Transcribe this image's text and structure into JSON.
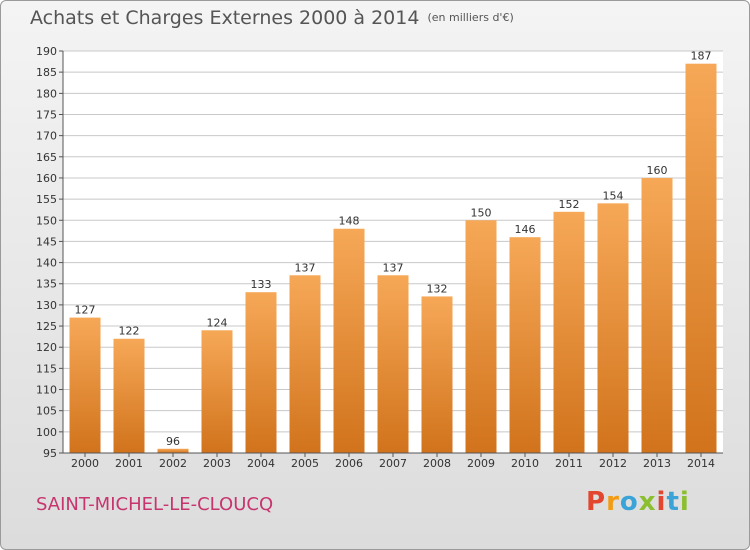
{
  "header": {
    "title": "Achats et Charges Externes 2000 à 2014",
    "unit": "(en milliers d'€)"
  },
  "footer": {
    "commune": "SAINT-MICHEL-LE-CLOUCQ",
    "logo_text": "Proxiti",
    "logo_colors": [
      "#e2462f",
      "#f39c12",
      "#3aa3d8",
      "#8bbf2f",
      "#e2462f",
      "#3aa3d8",
      "#8bbf2f"
    ]
  },
  "colors": {
    "bar_top": "#f6a857",
    "bar_bottom": "#d1731c",
    "grid": "#c8c8c8",
    "commune": "#c8346e"
  },
  "chart_data": {
    "type": "bar",
    "title": "Achats et Charges Externes 2000 à 2014",
    "subtitle": "(en milliers d'€)",
    "categories": [
      "2000",
      "2001",
      "2002",
      "2003",
      "2004",
      "2005",
      "2006",
      "2007",
      "2008",
      "2009",
      "2010",
      "2011",
      "2012",
      "2013",
      "2014"
    ],
    "values": [
      127,
      122,
      96,
      124,
      133,
      137,
      148,
      137,
      132,
      150,
      146,
      152,
      154,
      160,
      187
    ],
    "ylim": [
      95,
      190
    ],
    "yticks": [
      95,
      100,
      105,
      110,
      115,
      120,
      125,
      130,
      135,
      140,
      145,
      150,
      155,
      160,
      165,
      170,
      175,
      180,
      185,
      190
    ],
    "grid": true,
    "data_labels": true
  }
}
